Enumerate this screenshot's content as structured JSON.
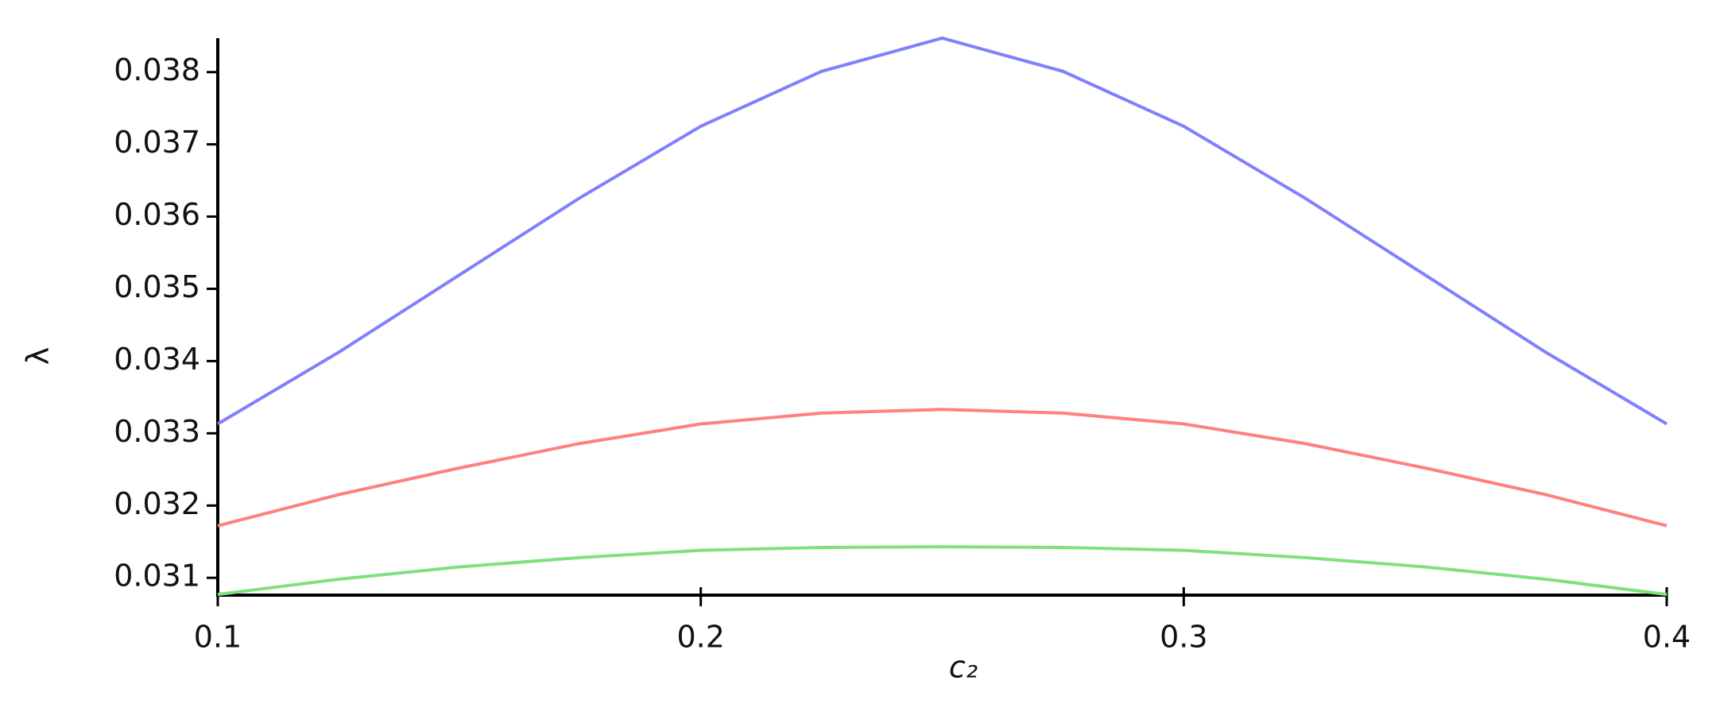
{
  "chart_data": {
    "type": "line",
    "x_label": "c₂",
    "y_label": "λ",
    "x": [
      0.1,
      0.125,
      0.15,
      0.175,
      0.2,
      0.225,
      0.25,
      0.275,
      0.3,
      0.325,
      0.35,
      0.375,
      0.4
    ],
    "series": [
      {
        "color": "#8080ff",
        "values": [
          0.03313,
          0.03412,
          0.03519,
          0.03626,
          0.03725,
          0.03801,
          0.03847,
          0.03801,
          0.03725,
          0.03626,
          0.03519,
          0.03412,
          0.03313
        ]
      },
      {
        "color": "#ff8080",
        "values": [
          0.03172,
          0.03215,
          0.03252,
          0.03286,
          0.03313,
          0.03328,
          0.03333,
          0.03328,
          0.03313,
          0.03286,
          0.03252,
          0.03215,
          0.03172
        ]
      },
      {
        "color": "#80e080",
        "values": [
          0.03077,
          0.03098,
          0.03115,
          0.03128,
          0.03138,
          0.03142,
          0.03143,
          0.03142,
          0.03138,
          0.03128,
          0.03115,
          0.03098,
          0.03077
        ]
      }
    ],
    "xlim": [
      0.1,
      0.4
    ],
    "xticks": [
      0.1,
      0.2,
      0.3,
      0.4
    ],
    "ylim": [
      0.03076,
      0.03847
    ],
    "yticks": [
      0.031,
      0.032,
      0.033,
      0.034,
      0.035,
      0.036,
      0.037,
      0.038
    ]
  }
}
